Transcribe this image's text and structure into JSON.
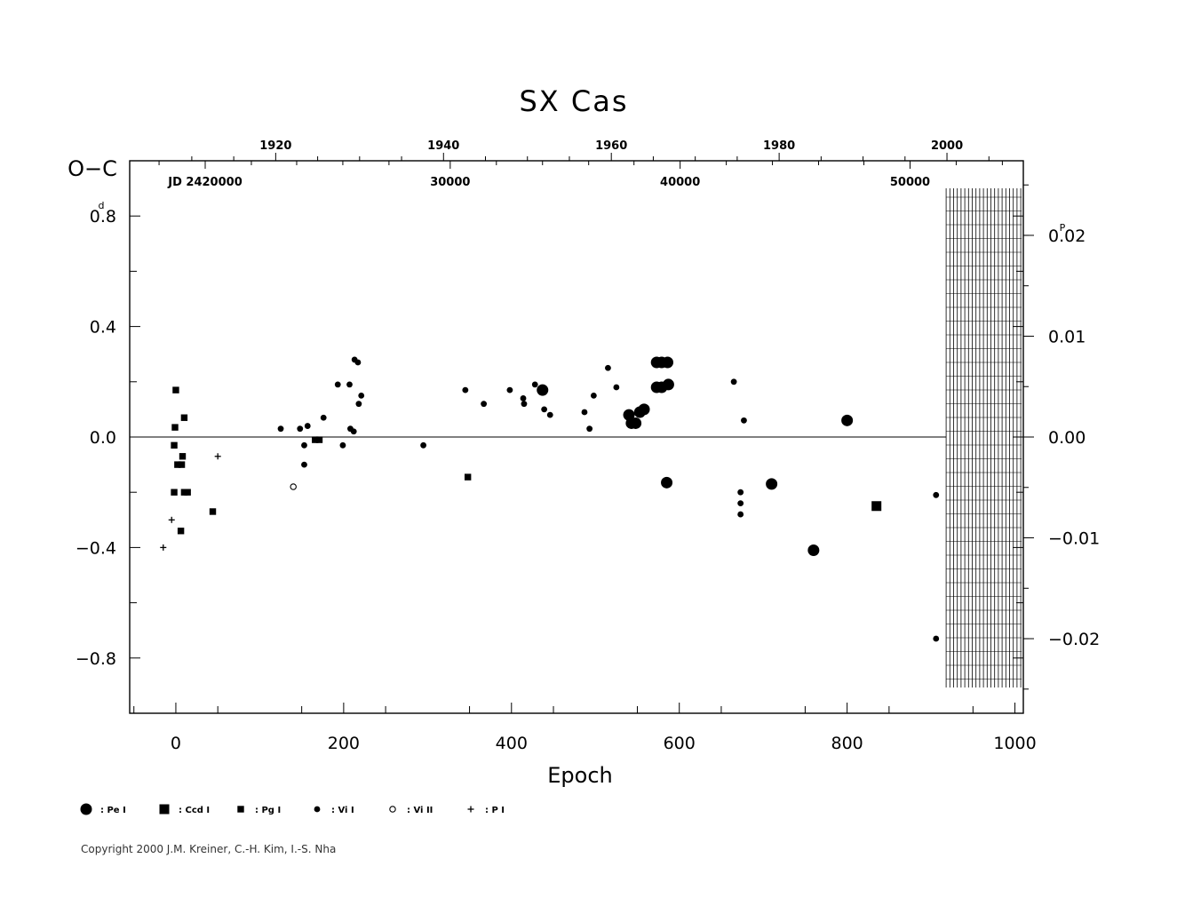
{
  "chart_data": {
    "type": "scatter",
    "title": "SX  Cas",
    "ylabel": "O−C",
    "xlabel": "Epoch",
    "ylabel_unit": "d",
    "right_unit": "P",
    "xlim": [
      -55,
      1010
    ],
    "ylim": [
      -1.0,
      1.0
    ],
    "x_ticks": [
      0,
      200,
      400,
      600,
      800,
      1000
    ],
    "y_ticks": [
      {
        "value": 0.8,
        "label": "0.8"
      },
      {
        "value": 0.4,
        "label": "0.4"
      },
      {
        "value": 0.0,
        "label": "0.0"
      },
      {
        "value": -0.4,
        "label": "−0.4"
      },
      {
        "value": -0.8,
        "label": "−0.8"
      }
    ],
    "right_ticks": [
      {
        "value": 0.02,
        "label": "0.02"
      },
      {
        "value": 0.01,
        "label": "0.01"
      },
      {
        "value": 0.0,
        "label": "0.00"
      },
      {
        "value": -0.01,
        "label": "−0.01"
      },
      {
        "value": -0.02,
        "label": "−0.02"
      }
    ],
    "period_days": 36.5,
    "year_ticks": [
      {
        "epoch": 119,
        "label": "1920"
      },
      {
        "epoch": 319,
        "label": "1940"
      },
      {
        "epoch": 519,
        "label": "1960"
      },
      {
        "epoch": 719,
        "label": "1980"
      },
      {
        "epoch": 919,
        "label": "2000"
      }
    ],
    "year_minor": [
      19,
      69,
      169,
      219,
      269,
      369,
      419,
      469,
      569,
      619,
      669,
      769,
      819,
      869,
      969
    ],
    "jd_ticks": [
      {
        "epoch": 35,
        "label": "JD  2420000"
      },
      {
        "epoch": 327,
        "label": "30000"
      },
      {
        "epoch": 601,
        "label": "40000"
      },
      {
        "epoch": 875,
        "label": "50000"
      }
    ],
    "jd_minor": [
      -20,
      90,
      144,
      199,
      254,
      382,
      437,
      492,
      546,
      656,
      711,
      766,
      820,
      930,
      985
    ],
    "legend": [
      {
        "key": "pe",
        "label": ": Pe  I"
      },
      {
        "key": "ccd",
        "label": ": Ccd  I"
      },
      {
        "key": "pg",
        "label": ": Pg  I"
      },
      {
        "key": "vi",
        "label": ": Vi  I"
      },
      {
        "key": "vi2",
        "label": ": Vi  II"
      },
      {
        "key": "p",
        "label": ": P  I"
      }
    ],
    "series": [
      {
        "name": "Pe I",
        "marker": "pe",
        "points": [
          [
            437,
            0.17
          ],
          [
            540,
            0.08
          ],
          [
            543,
            0.05
          ],
          [
            548,
            0.05
          ],
          [
            553,
            0.09
          ],
          [
            558,
            0.1
          ],
          [
            573,
            0.27
          ],
          [
            579,
            0.27
          ],
          [
            586,
            0.27
          ],
          [
            573,
            0.18
          ],
          [
            579,
            0.18
          ],
          [
            587,
            0.19
          ],
          [
            585,
            -0.165
          ],
          [
            710,
            -0.17
          ],
          [
            760,
            -0.41
          ],
          [
            800,
            0.06
          ]
        ]
      },
      {
        "name": "Ccd I",
        "marker": "ccd",
        "points": [
          [
            835,
            -0.25
          ]
        ]
      },
      {
        "name": "Pg I",
        "marker": "pg",
        "points": [
          [
            0,
            0.17
          ],
          [
            -1,
            0.035
          ],
          [
            -2,
            -0.03
          ],
          [
            2,
            -0.1
          ],
          [
            7,
            -0.1
          ],
          [
            -2,
            -0.2
          ],
          [
            10,
            -0.2
          ],
          [
            14,
            -0.2
          ],
          [
            6,
            -0.34
          ],
          [
            10,
            0.07
          ],
          [
            8,
            -0.07
          ],
          [
            44,
            -0.27
          ],
          [
            166,
            -0.01
          ],
          [
            171,
            -0.01
          ],
          [
            348,
            -0.145
          ]
        ]
      },
      {
        "name": "Vi I",
        "marker": "vi",
        "points": [
          [
            125,
            0.03
          ],
          [
            148,
            0.03
          ],
          [
            157,
            0.04
          ],
          [
            153,
            -0.03
          ],
          [
            153,
            -0.1
          ],
          [
            176,
            0.07
          ],
          [
            193,
            0.19
          ],
          [
            199,
            -0.03
          ],
          [
            207,
            0.19
          ],
          [
            208,
            0.03
          ],
          [
            212,
            0.02
          ],
          [
            213,
            0.28
          ],
          [
            217,
            0.27
          ],
          [
            218,
            0.12
          ],
          [
            221,
            0.15
          ],
          [
            295,
            -0.03
          ],
          [
            345,
            0.17
          ],
          [
            367,
            0.12
          ],
          [
            398,
            0.17
          ],
          [
            414,
            0.14
          ],
          [
            415,
            0.12
          ],
          [
            428,
            0.19
          ],
          [
            439,
            0.1
          ],
          [
            446,
            0.08
          ],
          [
            487,
            0.09
          ],
          [
            493,
            0.03
          ],
          [
            498,
            0.15
          ],
          [
            515,
            0.25
          ],
          [
            525,
            0.18
          ],
          [
            665,
            0.2
          ],
          [
            673,
            -0.2
          ],
          [
            673,
            -0.24
          ],
          [
            673,
            -0.28
          ],
          [
            677,
            0.06
          ],
          [
            906,
            -0.21
          ],
          [
            906,
            -0.73
          ]
        ]
      },
      {
        "name": "Vi II",
        "marker": "vi2",
        "points": [
          [
            140,
            -0.18
          ]
        ]
      },
      {
        "name": "P I",
        "marker": "p",
        "points": [
          [
            -15,
            -0.4
          ],
          [
            -5,
            -0.3
          ],
          [
            50,
            -0.07
          ]
        ]
      }
    ]
  },
  "footer": {
    "copyright": "Copyright 2000 J.M. Kreiner, C.-H. Kim, I.-S. Nha"
  }
}
